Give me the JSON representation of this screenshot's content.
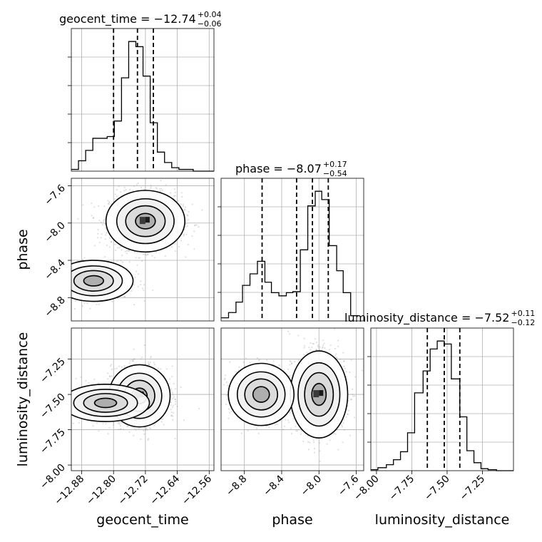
{
  "chart_data": {
    "type": "corner",
    "parameters": [
      "geocent_time",
      "phase",
      "luminosity_distance"
    ],
    "grid": true,
    "titles": [
      {
        "param": "geocent_time",
        "text": "geocent_time = −12.74",
        "sup": "+0.04",
        "sub": "−0.06"
      },
      {
        "param": "phase",
        "text": "phase = −8.07",
        "sup": "+0.17",
        "sub": "−0.54"
      },
      {
        "param": "luminosity_distance",
        "text": "luminosity_distance = −7.52",
        "sup": "+0.11",
        "sub": "−0.12"
      }
    ],
    "axis_labels": {
      "x": [
        "geocent_time",
        "phase",
        "luminosity_distance"
      ],
      "y": [
        "phase",
        "luminosity_distance"
      ]
    },
    "ranges": {
      "geocent_time": [
        -12.906,
        -12.548
      ],
      "phase": [
        -9.05,
        -7.52
      ],
      "luminosity_distance": [
        -8.04,
        -7.03
      ]
    },
    "ticks": {
      "geocent_time": {
        "values": [
          -12.88,
          -12.8,
          -12.72,
          -12.64,
          -12.56
        ],
        "labels": [
          "−12.88",
          "−12.80",
          "−12.72",
          "−12.64",
          "−12.56"
        ]
      },
      "phase": {
        "values": [
          -8.8,
          -8.4,
          -8.0,
          -7.6
        ],
        "labels": [
          "−8.8",
          "−8.4",
          "−8.0",
          "−7.6"
        ]
      },
      "luminosity_distance": {
        "values": [
          -8.0,
          -7.75,
          -7.5,
          -7.25
        ],
        "labels": [
          "−8.00",
          "−7.75",
          "−7.50",
          "−7.25"
        ]
      }
    },
    "histograms": {
      "geocent_time": {
        "bins": [
          -12.906,
          -12.888,
          -12.87,
          -12.852,
          -12.834,
          -12.816,
          -12.798,
          -12.78,
          -12.762,
          -12.744,
          -12.726,
          -12.708,
          -12.69,
          -12.672,
          -12.654,
          -12.636,
          -12.618,
          -12.6,
          -12.582,
          -12.564,
          -12.548
        ],
        "counts": [
          1,
          6,
          12,
          19,
          19,
          20,
          29,
          54,
          75,
          72,
          55,
          28,
          11,
          5,
          2,
          1,
          1,
          0,
          0,
          0
        ],
        "quantiles": [
          -12.8,
          -12.74,
          -12.7
        ]
      },
      "phase": {
        "bins": [
          -9.05,
          -8.97,
          -8.89,
          -8.82,
          -8.74,
          -8.66,
          -8.58,
          -8.51,
          -8.43,
          -8.35,
          -8.28,
          -8.2,
          -8.12,
          -8.04,
          -7.97,
          -7.89,
          -7.81,
          -7.74,
          -7.66,
          -7.58
        ],
        "counts": [
          3,
          8,
          18,
          34,
          45,
          57,
          37,
          27,
          24,
          27,
          28,
          68,
          110,
          124,
          116,
          72,
          48,
          27,
          5
        ],
        "quantiles": [
          -8.61,
          -8.24,
          -8.07,
          -7.9
        ]
      },
      "luminosity_distance": {
        "bins": [
          -8.04,
          -7.99,
          -7.93,
          -7.88,
          -7.83,
          -7.78,
          -7.73,
          -7.67,
          -7.62,
          -7.57,
          -7.52,
          -7.47,
          -7.41,
          -7.36,
          -7.31,
          -7.26,
          -7.21,
          -7.15,
          -7.1,
          -7.03
        ],
        "counts": [
          1,
          3,
          6,
          11,
          19,
          38,
          78,
          100,
          122,
          130,
          127,
          92,
          54,
          20,
          8,
          2,
          1,
          0,
          0
        ],
        "quantiles": [
          -7.64,
          -7.52,
          -7.41
        ]
      }
    },
    "quantile_lines": [
      {
        "param": "geocent_time",
        "values": [
          -12.8,
          -12.74,
          -12.7
        ]
      },
      {
        "param": "phase",
        "values": [
          -8.61,
          -8.24,
          -8.07,
          -7.9
        ]
      },
      {
        "param": "luminosity_distance",
        "values": [
          -7.64,
          -7.52,
          -7.41
        ]
      }
    ],
    "density_peaks": {
      "phase_vs_geocent_time": [
        {
          "x": -12.72,
          "y": -7.98,
          "w": 0.045,
          "h": 0.15,
          "weight": 1.0
        },
        {
          "x": -12.85,
          "y": -8.62,
          "w": 0.045,
          "h": 0.1,
          "weight": 0.45
        }
      ],
      "luminosity_distance_vs_geocent_time": [
        {
          "x": -12.735,
          "y": -7.51,
          "w": 0.035,
          "h": 0.1,
          "weight": 1.0
        },
        {
          "x": -12.82,
          "y": -7.56,
          "w": 0.05,
          "h": 0.06,
          "weight": 0.5
        }
      ],
      "luminosity_distance_vs_phase": [
        {
          "x": -8.0,
          "y": -7.5,
          "w": 0.14,
          "h": 0.14,
          "weight": 1.0
        },
        {
          "x": -8.62,
          "y": -7.5,
          "w": 0.16,
          "h": 0.1,
          "weight": 0.5
        }
      ]
    }
  }
}
